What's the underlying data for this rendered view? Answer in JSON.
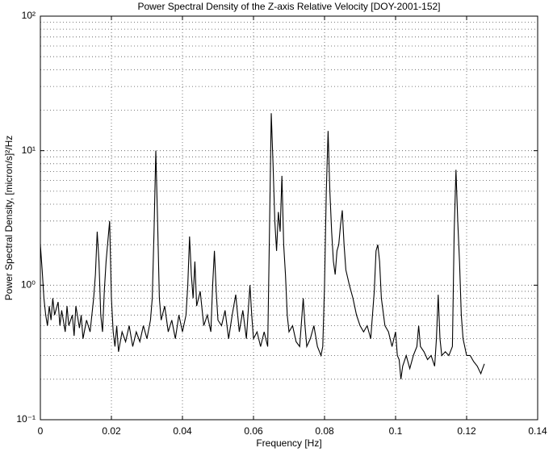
{
  "chart_data": {
    "type": "line",
    "title": "Power Spectral Density of the Z-axis Relative Velocity [DOY-2001-152]",
    "xlabel": "Frequency [Hz]",
    "ylabel": "Power Spectral Density, [micron/s]²/Hz",
    "color": "#000000",
    "log_y": true,
    "grid": true,
    "minor_grid": true,
    "xlim": [
      0,
      0.14
    ],
    "xticks": [
      0,
      0.02,
      0.04,
      0.06,
      0.08,
      0.1,
      0.12,
      0.14
    ],
    "ylim": [
      0.1,
      100
    ],
    "yticks": [
      {
        "value": 0.1,
        "label": "10⁻¹"
      },
      {
        "value": 1,
        "label": "10⁰"
      },
      {
        "value": 10,
        "label": "10¹"
      },
      {
        "value": 100,
        "label": "10²"
      }
    ],
    "x": [
      0,
      0.0005,
      0.001,
      0.0015,
      0.002,
      0.0025,
      0.003,
      0.0035,
      0.004,
      0.005,
      0.0055,
      0.006,
      0.007,
      0.0075,
      0.008,
      0.009,
      0.0095,
      0.01,
      0.011,
      0.0115,
      0.012,
      0.013,
      0.014,
      0.015,
      0.0155,
      0.016,
      0.0165,
      0.017,
      0.0175,
      0.018,
      0.0185,
      0.0195,
      0.02,
      0.0205,
      0.021,
      0.0215,
      0.022,
      0.023,
      0.024,
      0.025,
      0.026,
      0.027,
      0.028,
      0.029,
      0.03,
      0.031,
      0.0315,
      0.032,
      0.0325,
      0.033,
      0.0335,
      0.034,
      0.035,
      0.036,
      0.037,
      0.038,
      0.039,
      0.04,
      0.041,
      0.0415,
      0.042,
      0.0425,
      0.043,
      0.0435,
      0.044,
      0.045,
      0.046,
      0.047,
      0.048,
      0.0485,
      0.049,
      0.0495,
      0.05,
      0.051,
      0.052,
      0.053,
      0.054,
      0.055,
      0.056,
      0.057,
      0.058,
      0.059,
      0.0595,
      0.06,
      0.061,
      0.062,
      0.063,
      0.064,
      0.0645,
      0.065,
      0.0655,
      0.066,
      0.0665,
      0.067,
      0.0675,
      0.068,
      0.0685,
      0.069,
      0.0695,
      0.07,
      0.071,
      0.072,
      0.073,
      0.074,
      0.0745,
      0.075,
      0.076,
      0.077,
      0.078,
      0.079,
      0.0795,
      0.08,
      0.0805,
      0.081,
      0.0815,
      0.082,
      0.0825,
      0.083,
      0.0835,
      0.084,
      0.0845,
      0.085,
      0.0855,
      0.086,
      0.087,
      0.088,
      0.089,
      0.09,
      0.091,
      0.092,
      0.093,
      0.094,
      0.0945,
      0.095,
      0.0955,
      0.096,
      0.097,
      0.098,
      0.099,
      0.1,
      0.1005,
      0.101,
      0.1015,
      0.102,
      0.103,
      0.104,
      0.105,
      0.106,
      0.1065,
      0.107,
      0.108,
      0.109,
      0.11,
      0.111,
      0.1115,
      0.112,
      0.1125,
      0.113,
      0.114,
      0.115,
      0.116,
      0.1165,
      0.117,
      0.1175,
      0.118,
      0.1185,
      0.119,
      0.12,
      0.121,
      0.122,
      0.123,
      0.124,
      0.1245,
      0.125
    ],
    "values": [
      2.0,
      1.3,
      0.8,
      0.6,
      0.5,
      0.7,
      0.55,
      0.8,
      0.6,
      0.75,
      0.5,
      0.65,
      0.45,
      0.7,
      0.5,
      0.6,
      0.42,
      0.7,
      0.48,
      0.6,
      0.4,
      0.55,
      0.45,
      0.8,
      1.2,
      2.5,
      1.5,
      0.6,
      0.45,
      0.9,
      1.5,
      3.0,
      0.8,
      0.45,
      0.35,
      0.5,
      0.32,
      0.45,
      0.38,
      0.5,
      0.35,
      0.45,
      0.38,
      0.5,
      0.4,
      0.55,
      0.8,
      2.5,
      10,
      3.0,
      0.8,
      0.55,
      0.7,
      0.45,
      0.55,
      0.4,
      0.6,
      0.45,
      0.6,
      1.0,
      2.3,
      1.2,
      0.8,
      1.5,
      0.7,
      0.9,
      0.5,
      0.6,
      0.45,
      1.0,
      1.8,
      0.9,
      0.55,
      0.5,
      0.65,
      0.4,
      0.6,
      0.85,
      0.45,
      0.65,
      0.4,
      1.0,
      0.6,
      0.4,
      0.45,
      0.35,
      0.45,
      0.35,
      2.5,
      19,
      8,
      3,
      1.8,
      3.5,
      2.5,
      6.5,
      2.0,
      1.2,
      0.6,
      0.45,
      0.5,
      0.38,
      0.35,
      0.8,
      0.5,
      0.35,
      0.4,
      0.5,
      0.35,
      0.3,
      0.35,
      1.0,
      5,
      14,
      5,
      2.5,
      1.5,
      1.2,
      1.8,
      2.0,
      2.8,
      3.6,
      2.0,
      1.3,
      1.0,
      0.8,
      0.6,
      0.5,
      0.45,
      0.5,
      0.4,
      0.9,
      1.8,
      2.0,
      1.5,
      0.8,
      0.5,
      0.45,
      0.35,
      0.45,
      0.3,
      0.28,
      0.2,
      0.25,
      0.3,
      0.24,
      0.3,
      0.35,
      0.5,
      0.35,
      0.32,
      0.28,
      0.3,
      0.25,
      0.4,
      0.85,
      0.4,
      0.3,
      0.32,
      0.3,
      0.35,
      2.5,
      7.2,
      3,
      1.5,
      0.6,
      0.4,
      0.3,
      0.3,
      0.27,
      0.25,
      0.22,
      0.24,
      0.26
    ]
  }
}
